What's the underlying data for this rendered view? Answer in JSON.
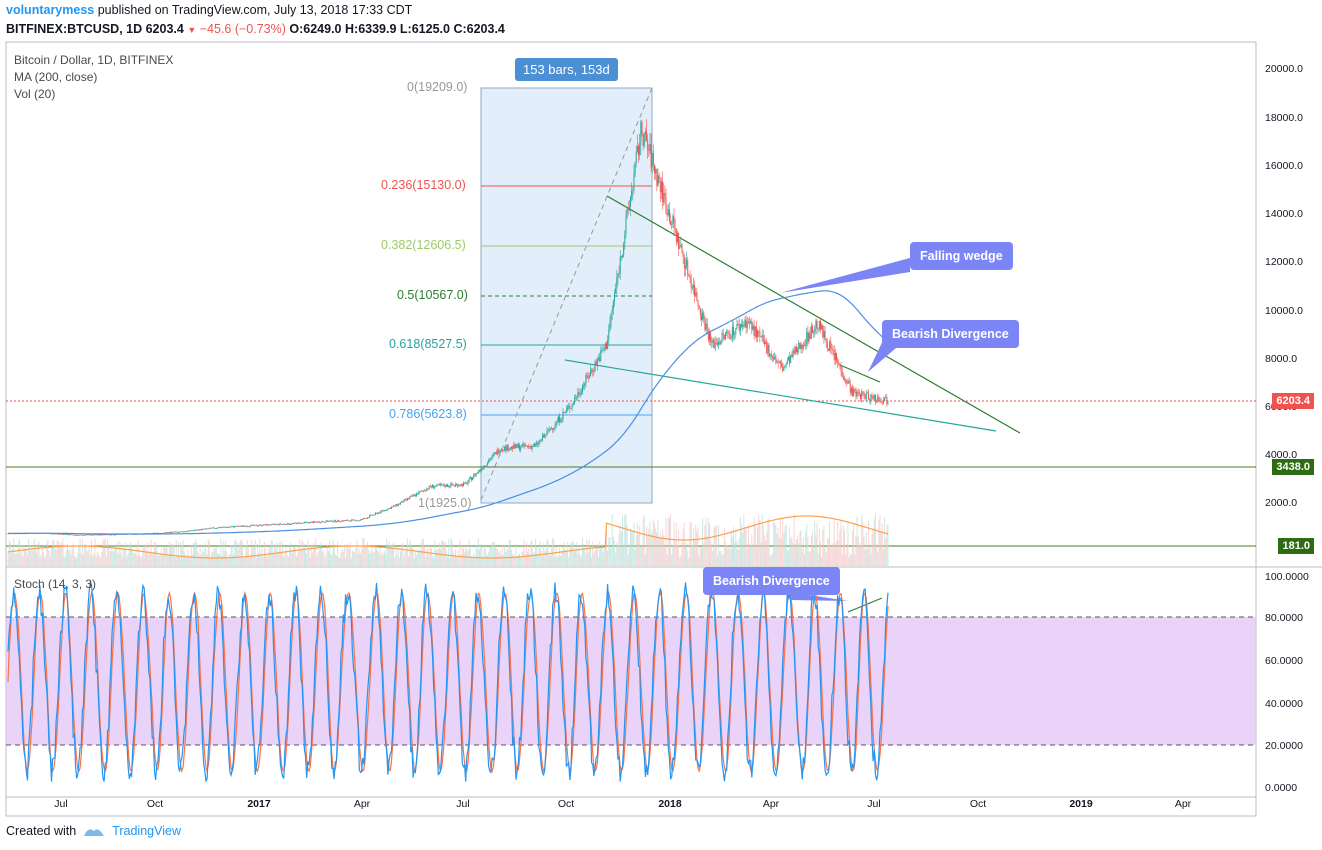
{
  "header": {
    "author": "voluntarymess",
    "published": "published on TradingView.com, July 13, 2018 17:33 CDT",
    "symbol": "BITFINEX:BTCUSD, 1D",
    "last": "6203.4",
    "change": "−45.6 (−0.73%)",
    "o_label": "O:",
    "o": "6249.0",
    "h_label": "H:",
    "h": "6339.9",
    "l_label": "L:",
    "l": "6125.0",
    "c_label": "C:",
    "c": "6203.4"
  },
  "legend": {
    "title": "Bitcoin / Dollar, 1D, BITFINEX",
    "ma": "MA (200, close)",
    "vol": "Vol (20)",
    "stoch": "Stoch (14, 3, 3)"
  },
  "annotations": {
    "bars_box": "153 bars, 153d",
    "falling_wedge": "Falling wedge",
    "bearish_div_1": "Bearish Divergence",
    "bearish_div_2": "Bearish Divergence"
  },
  "price_labels": {
    "last": "6203.4",
    "support": "3438.0",
    "volume": "181.0"
  },
  "footer": {
    "created_with": "Created with",
    "brand": "TradingView"
  },
  "colors": {
    "up": "#26a69a",
    "down": "#ef5350",
    "ma": "#4a90e2",
    "stoch_k": "#2196f3",
    "stoch_d": "#ff7043",
    "stoch_band": "#e1c4f7",
    "callout": "#7b85f5",
    "support": "#4a7c1f",
    "wedge": "#2e7d32"
  },
  "chart_data": [
    {
      "type": "candlestick",
      "title": "Bitcoin / Dollar, 1D, BITFINEX",
      "x_ticks": [
        "Jul",
        "Oct",
        "2017",
        "Apr",
        "Jul",
        "Oct",
        "2018",
        "Apr",
        "Jul",
        "Oct",
        "2019",
        "Apr"
      ],
      "y_ticks": [
        "20000.0",
        "18000.0",
        "16000.0",
        "14000.0",
        "12000.0",
        "10000.0",
        "8000.0",
        "6000.0",
        "4000.0",
        "2000.0"
      ],
      "ylim": [
        0,
        20000
      ],
      "price_path": [
        [
          "2016-06",
          650
        ],
        [
          "2016-07",
          670
        ],
        [
          "2016-08",
          580
        ],
        [
          "2016-09",
          610
        ],
        [
          "2016-10",
          640
        ],
        [
          "2016-11",
          730
        ],
        [
          "2016-12",
          900
        ],
        [
          "2017-01",
          980
        ],
        [
          "2017-02",
          1050
        ],
        [
          "2017-03",
          1150
        ],
        [
          "2017-04",
          1200
        ],
        [
          "2017-05",
          1800
        ],
        [
          "2017-06",
          2600
        ],
        [
          "2017-07",
          2700
        ],
        [
          "2017-08",
          4200
        ],
        [
          "2017-09",
          4300
        ],
        [
          "2017-10",
          6000
        ],
        [
          "2017-11",
          8500
        ],
        [
          "2017-12",
          17500
        ],
        [
          "2018-01",
          13000
        ],
        [
          "2018-02",
          8500
        ],
        [
          "2018-03",
          9500
        ],
        [
          "2018-04",
          7500
        ],
        [
          "2018-05",
          9400
        ],
        [
          "2018-06",
          6500
        ],
        [
          "2018-07",
          6203.4
        ]
      ],
      "fibonacci": [
        {
          "label": "0(19209.0)",
          "value": 19209.0
        },
        {
          "label": "0.236(15130.0)",
          "value": 15130.0
        },
        {
          "label": "0.382(12606.5)",
          "value": 12606.5
        },
        {
          "label": "0.5(10567.0)",
          "value": 10567.0
        },
        {
          "label": "0.618(8527.5)",
          "value": 8527.5
        },
        {
          "label": "0.786(5623.8)",
          "value": 5623.8
        },
        {
          "label": "1(1925.0)",
          "value": 1925.0
        }
      ],
      "horizontal_lines": [
        {
          "label": "3438.0",
          "value": 3438.0
        },
        {
          "label": "6203.4",
          "value": 6203.4
        }
      ],
      "series": [
        {
          "name": "MA (200, close)"
        },
        {
          "name": "Vol (20)"
        }
      ]
    },
    {
      "type": "line",
      "title": "Stoch (14, 3, 3)",
      "y_ticks": [
        "100.0000",
        "80.0000",
        "60.0000",
        "40.0000",
        "20.0000",
        "0.0000"
      ],
      "ylim": [
        0,
        100
      ],
      "bands": [
        20,
        80
      ]
    }
  ]
}
